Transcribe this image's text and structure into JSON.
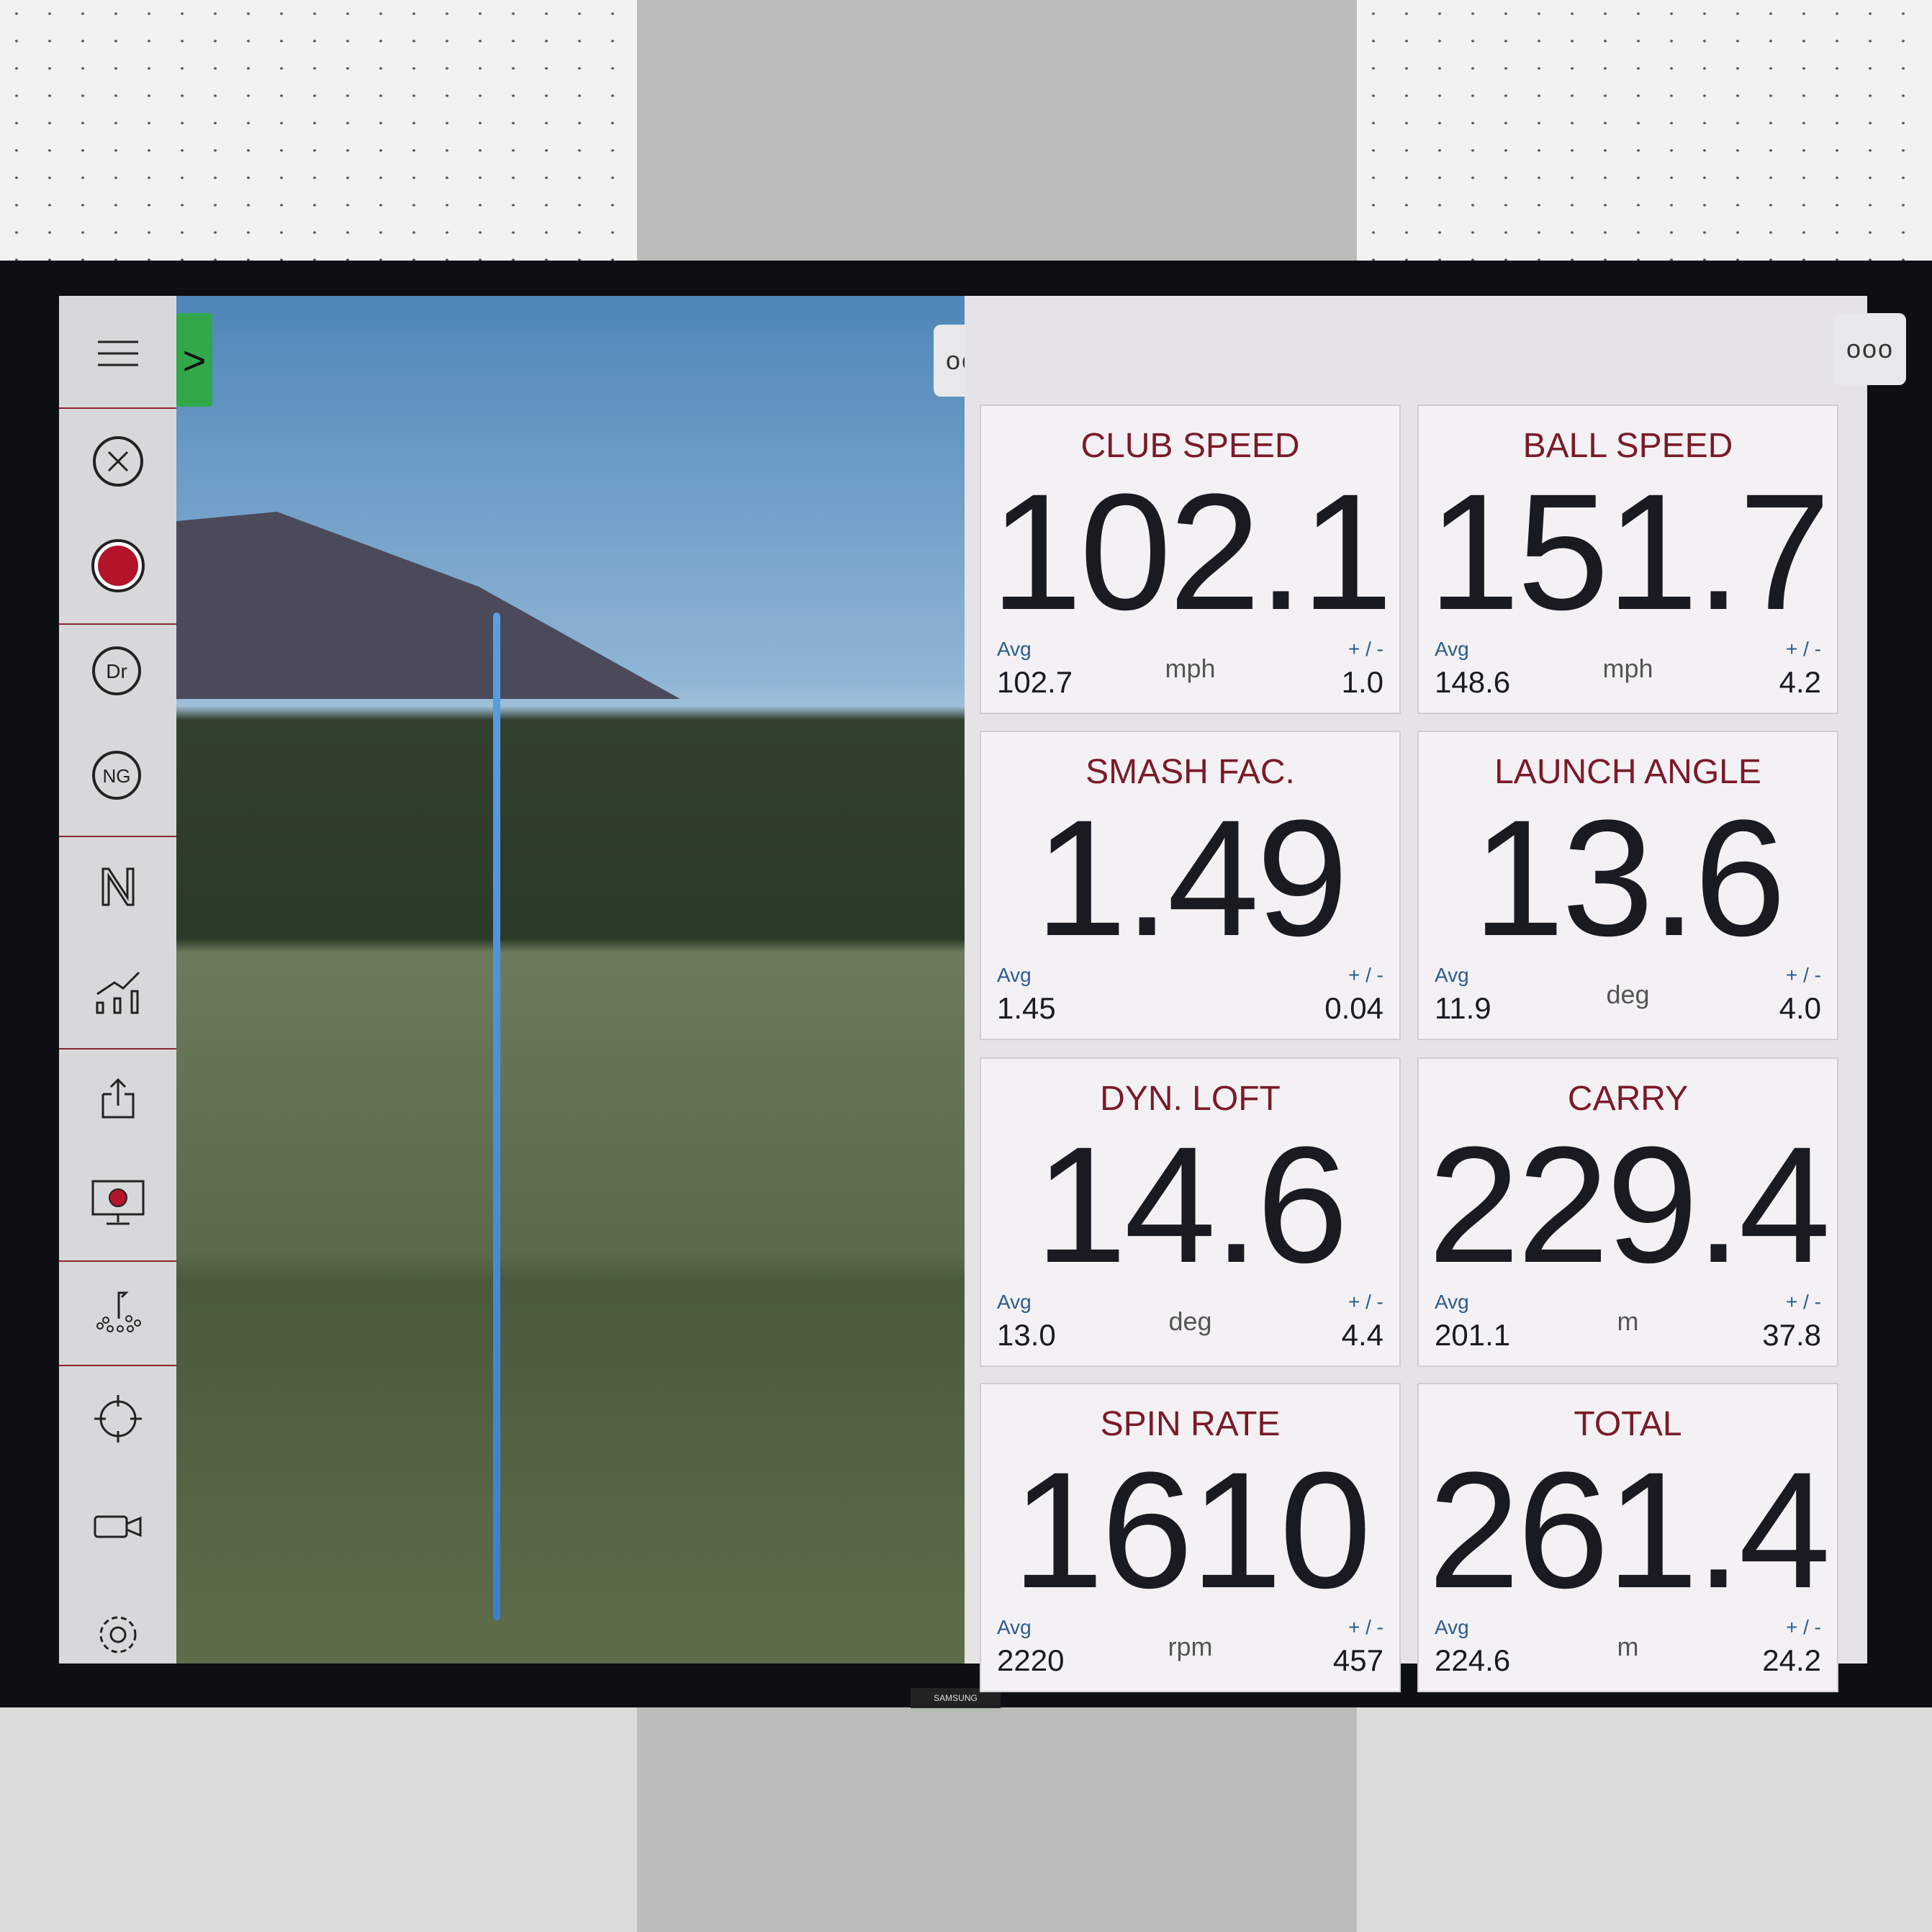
{
  "tv_brand": "SAMSUNG",
  "sidebar": {
    "items": [
      "menu-icon",
      "close-circle-icon",
      "record-icon",
      "driver-club-icon",
      "normalized-club-icon",
      "normalize-icon",
      "stats-chart-icon",
      "share-icon",
      "screen-record-icon",
      "target-practice-icon",
      "crosshair-icon",
      "video-camera-icon",
      "gear-icon"
    ]
  },
  "more_label": "ooo",
  "expand_label": ">",
  "tiles": [
    {
      "title": "CLUB SPEED",
      "value": "102.1",
      "avg_label": "Avg",
      "avg": "102.7",
      "unit": "mph",
      "pm_label": "+ / -",
      "pm": "1.0"
    },
    {
      "title": "BALL SPEED",
      "value": "151.7",
      "avg_label": "Avg",
      "avg": "148.6",
      "unit": "mph",
      "pm_label": "+ / -",
      "pm": "4.2"
    },
    {
      "title": "SMASH FAC.",
      "value": "1.49",
      "avg_label": "Avg",
      "avg": "1.45",
      "unit": "",
      "pm_label": "+ / -",
      "pm": "0.04"
    },
    {
      "title": "LAUNCH ANGLE",
      "value": "13.6",
      "avg_label": "Avg",
      "avg": "11.9",
      "unit": "deg",
      "pm_label": "+ / -",
      "pm": "4.0"
    },
    {
      "title": "DYN. LOFT",
      "value": "14.6",
      "avg_label": "Avg",
      "avg": "13.0",
      "unit": "deg",
      "pm_label": "+ / -",
      "pm": "4.4"
    },
    {
      "title": "CARRY",
      "value": "229.4",
      "avg_label": "Avg",
      "avg": "201.1",
      "unit": "m",
      "pm_label": "+ / -",
      "pm": "37.8"
    },
    {
      "title": "SPIN RATE",
      "value": "1610",
      "avg_label": "Avg",
      "avg": "2220",
      "unit": "rpm",
      "pm_label": "+ / -",
      "pm": "457"
    },
    {
      "title": "TOTAL",
      "value": "261.4",
      "avg_label": "Avg",
      "avg": "224.6",
      "unit": "m",
      "pm_label": "+ / -",
      "pm": "24.2"
    }
  ]
}
